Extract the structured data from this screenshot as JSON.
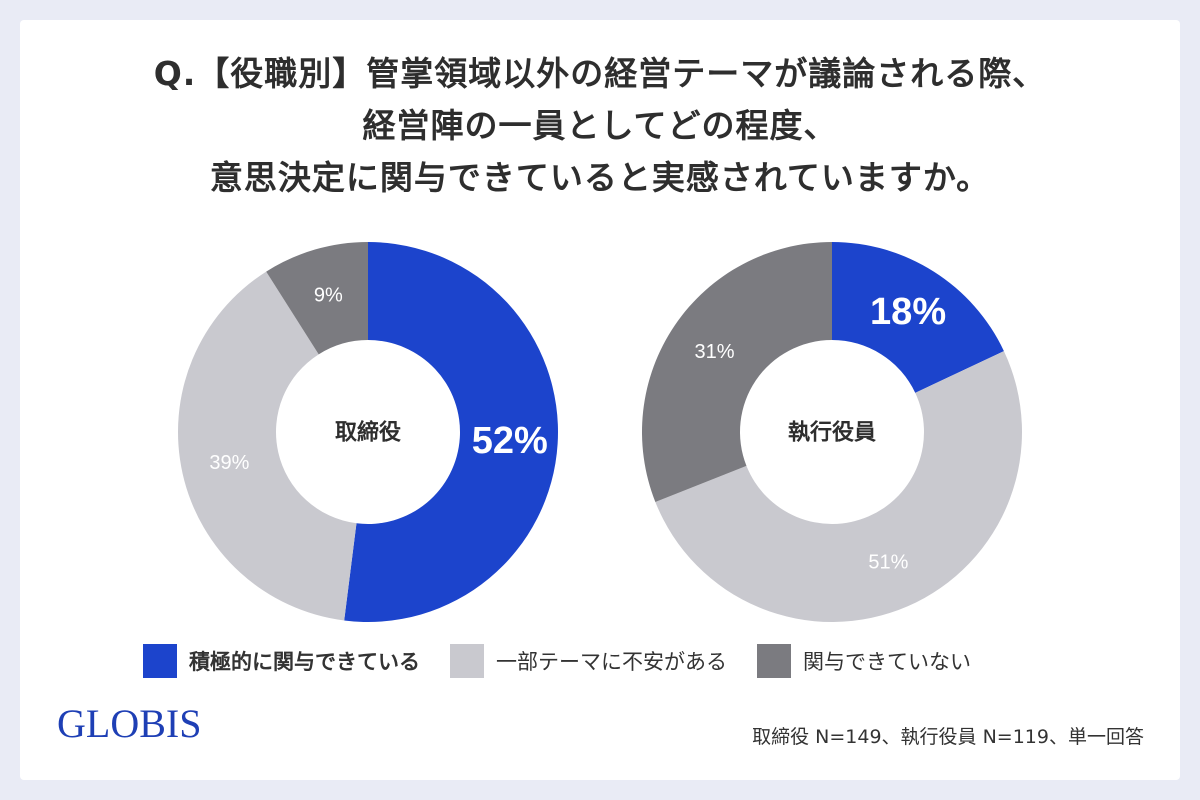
{
  "title_lines": [
    "Q.【役職別】管掌領域以外の経営テーマが議論される際、",
    "経営陣の一員としてどの程度、",
    "意思決定に関与できていると実感されていますか。"
  ],
  "legend": [
    {
      "label": "積極的に関与できている",
      "color": "#1c44cc"
    },
    {
      "label": "一部テーマに不安がある",
      "color": "#c9c9cf"
    },
    {
      "label": "関与できていない",
      "color": "#7b7b80"
    }
  ],
  "logo": "GLOBIS",
  "footnote": "取締役 N=149、執行役員 N=119、単一回答",
  "chart_data": [
    {
      "type": "pie",
      "center_label": "取締役",
      "slices": [
        {
          "category": "積極的に関与できている",
          "value": 52,
          "label": "52%",
          "color": "#1c44cc",
          "label_color": "#ffffff",
          "emphasis": true
        },
        {
          "category": "一部テーマに不安がある",
          "value": 39,
          "label": "39%",
          "color": "#c9c9cf",
          "label_color": "#ffffff",
          "emphasis": false
        },
        {
          "category": "関与できていない",
          "value": 9,
          "label": "9%",
          "color": "#7b7b80",
          "label_color": "#ffffff",
          "emphasis": false
        }
      ]
    },
    {
      "type": "pie",
      "center_label": "執行役員",
      "slices": [
        {
          "category": "積極的に関与できている",
          "value": 18,
          "label": "18%",
          "color": "#1c44cc",
          "label_color": "#ffffff",
          "emphasis": true
        },
        {
          "category": "一部テーマに不安がある",
          "value": 51,
          "label": "51%",
          "color": "#c9c9cf",
          "label_color": "#ffffff",
          "emphasis": false
        },
        {
          "category": "関与できていない",
          "value": 31,
          "label": "31%",
          "color": "#7b7b80",
          "label_color": "#ffffff",
          "emphasis": false
        }
      ]
    }
  ]
}
